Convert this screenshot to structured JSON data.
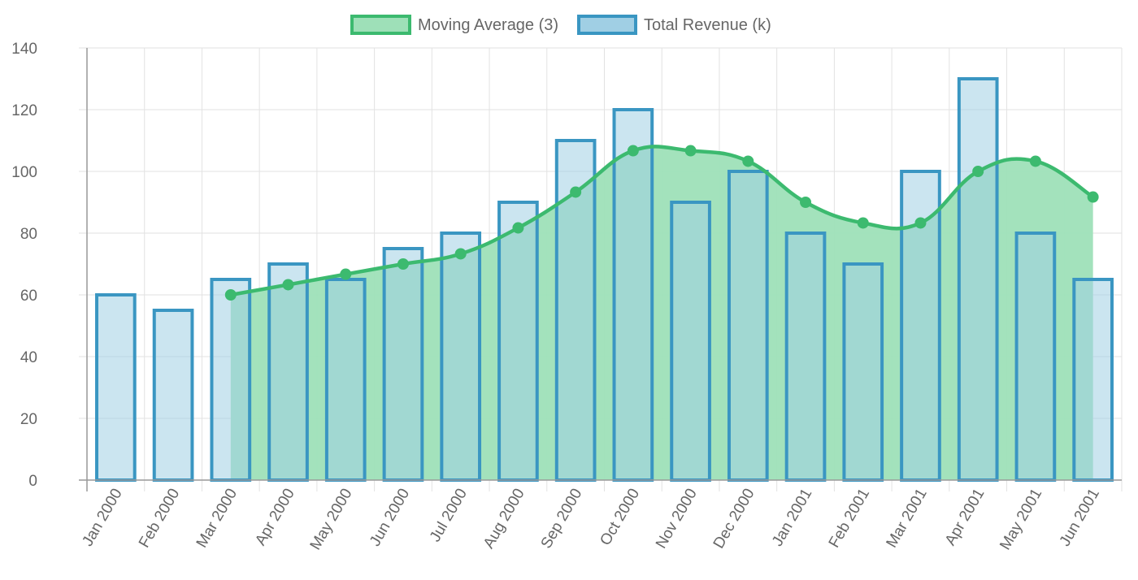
{
  "chart_data": {
    "type": "bar",
    "categories": [
      "Jan 2000",
      "Feb 2000",
      "Mar 2000",
      "Apr 2000",
      "May 2000",
      "Jun 2000",
      "Jul 2000",
      "Aug 2000",
      "Sep 2000",
      "Oct 2000",
      "Nov 2000",
      "Dec 2000",
      "Jan 2001",
      "Feb 2001",
      "Mar 2001",
      "Apr 2001",
      "May 2001",
      "Jun 2001"
    ],
    "series": [
      {
        "name": "Moving Average (3)",
        "type": "line",
        "fill": true,
        "smooth": true,
        "color": "#3cba6f",
        "fill_color": "#9ee0b8",
        "values": [
          null,
          null,
          60,
          63.3,
          66.7,
          70,
          73.3,
          81.7,
          93.3,
          106.7,
          106.7,
          103.3,
          90,
          83.3,
          83.3,
          100,
          103.3,
          91.7
        ]
      },
      {
        "name": "Total Revenue (k)",
        "type": "bar",
        "color": "#3a96c2",
        "fill_color": "#a0cfe4",
        "values": [
          60,
          55,
          65,
          70,
          65,
          75,
          80,
          90,
          110,
          120,
          90,
          100,
          80,
          70,
          100,
          130,
          80,
          65
        ]
      }
    ],
    "ylim": [
      0,
      140
    ],
    "yticks": [
      "0",
      "20",
      "40",
      "60",
      "80",
      "100",
      "120",
      "140"
    ],
    "grid": true,
    "legend": "top-center",
    "xtick_rotation": "-60"
  }
}
